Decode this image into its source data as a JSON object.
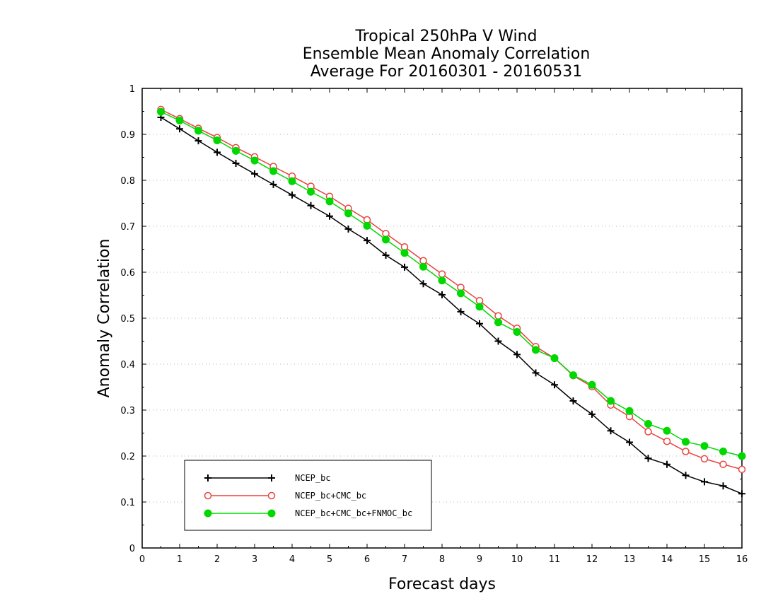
{
  "chart_data": {
    "type": "line",
    "title": [
      "Tropical 250hPa V Wind",
      "Ensemble Mean Anomaly Correlation",
      "Average For 20160301 - 20160531"
    ],
    "xlabel": "Forecast days",
    "ylabel": "Anomaly Correlation",
    "xlim": [
      0,
      16
    ],
    "ylim": [
      0,
      1
    ],
    "xticks": [
      "0",
      "1",
      "2",
      "3",
      "4",
      "5",
      "6",
      "7",
      "8",
      "9",
      "10",
      "11",
      "12",
      "13",
      "14",
      "15",
      "16"
    ],
    "yticks": [
      "0",
      "0.1",
      "0.2",
      "0.3",
      "0.4",
      "0.5",
      "0.6",
      "0.7",
      "0.8",
      "0.9",
      "1"
    ],
    "grid": true,
    "legend_position": "bottom-left",
    "x": [
      0.5,
      1,
      1.5,
      2,
      2.5,
      3,
      3.5,
      4,
      4.5,
      5,
      5.5,
      6,
      6.5,
      7,
      7.5,
      8,
      8.5,
      9,
      9.5,
      10,
      10.5,
      11,
      11.5,
      12,
      12.5,
      13,
      13.5,
      14,
      14.5,
      15,
      15.5,
      16
    ],
    "series": [
      {
        "name": "NCEP_bc",
        "color": "#000000",
        "marker": "plus",
        "values": [
          0.937,
          0.912,
          0.886,
          0.861,
          0.837,
          0.814,
          0.791,
          0.768,
          0.745,
          0.722,
          0.694,
          0.669,
          0.637,
          0.611,
          0.575,
          0.551,
          0.514,
          0.488,
          0.45,
          0.421,
          0.381,
          0.355,
          0.32,
          0.291,
          0.255,
          0.23,
          0.195,
          0.182,
          0.158,
          0.144,
          0.135,
          0.118
        ]
      },
      {
        "name": "NCEP_bc+CMC_bc",
        "color": "#e8433e",
        "marker": "open-circle",
        "values": [
          0.954,
          0.934,
          0.913,
          0.893,
          0.871,
          0.851,
          0.83,
          0.809,
          0.787,
          0.765,
          0.739,
          0.714,
          0.684,
          0.655,
          0.625,
          0.596,
          0.567,
          0.538,
          0.505,
          0.478,
          0.438,
          0.413,
          0.375,
          0.351,
          0.311,
          0.286,
          0.253,
          0.232,
          0.21,
          0.194,
          0.182,
          0.171
        ]
      },
      {
        "name": "NCEP_bc+CMC_bc+FNMOC_bc",
        "color": "#00d800",
        "marker": "filled-circle",
        "values": [
          0.949,
          0.93,
          0.908,
          0.887,
          0.864,
          0.843,
          0.82,
          0.798,
          0.775,
          0.754,
          0.728,
          0.701,
          0.671,
          0.642,
          0.612,
          0.582,
          0.554,
          0.525,
          0.491,
          0.47,
          0.431,
          0.413,
          0.376,
          0.355,
          0.32,
          0.298,
          0.27,
          0.255,
          0.231,
          0.222,
          0.21,
          0.2
        ]
      }
    ]
  }
}
